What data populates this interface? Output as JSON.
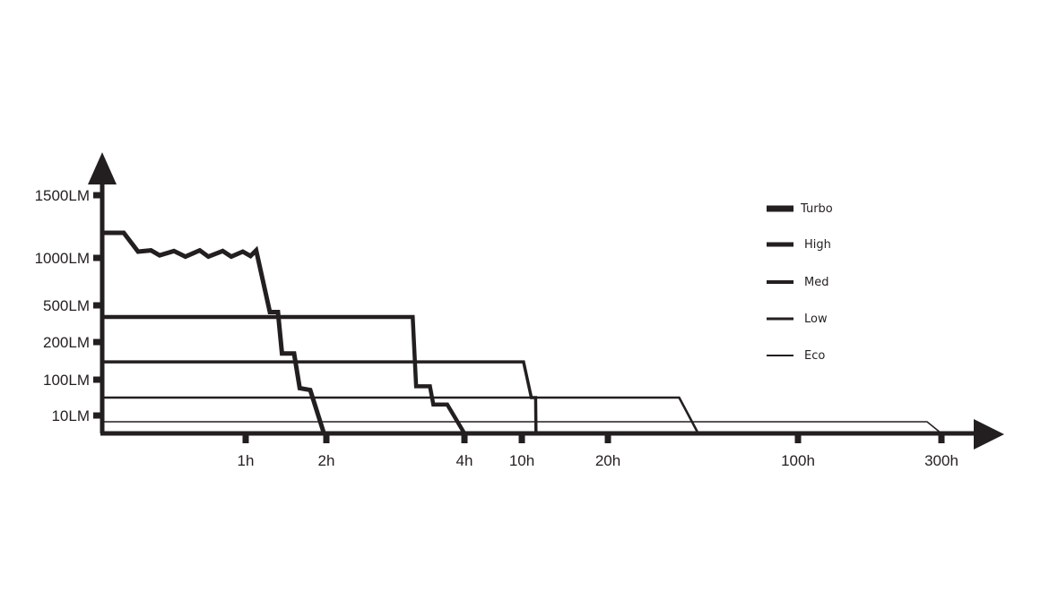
{
  "chart_data": {
    "type": "line",
    "title": "",
    "xlabel": "",
    "ylabel": "",
    "x_scale": "piecewise",
    "y_scale": "piecewise",
    "grid": false,
    "legend_position": "right",
    "color": "#231f20",
    "y_ticks": [
      "1500LM",
      "1000LM",
      "500LM",
      "200LM",
      "100LM",
      "10LM"
    ],
    "x_ticks": [
      "1h",
      "2h",
      "4h",
      "10h",
      "20h",
      "100h",
      "300h"
    ],
    "series": [
      {
        "name": "Turbo",
        "points": [
          {
            "x": 0,
            "y": 1200
          },
          {
            "x": 0.15,
            "y": 1200
          },
          {
            "x": 0.25,
            "y": 1050
          },
          {
            "x": 0.34,
            "y": 1060
          },
          {
            "x": 0.4,
            "y": 1020
          },
          {
            "x": 0.5,
            "y": 1055
          },
          {
            "x": 0.58,
            "y": 1010
          },
          {
            "x": 0.68,
            "y": 1060
          },
          {
            "x": 0.74,
            "y": 1010
          },
          {
            "x": 0.84,
            "y": 1055
          },
          {
            "x": 0.9,
            "y": 1010
          },
          {
            "x": 0.98,
            "y": 1050
          },
          {
            "x": 1.06,
            "y": 1015
          },
          {
            "x": 1.13,
            "y": 1060
          },
          {
            "x": 1.3,
            "y": 450
          },
          {
            "x": 1.4,
            "y": 450
          },
          {
            "x": 1.45,
            "y": 230
          },
          {
            "x": 1.6,
            "y": 230
          },
          {
            "x": 1.67,
            "y": 125
          },
          {
            "x": 1.8,
            "y": 120
          },
          {
            "x": 1.97,
            "y": 0
          },
          {
            "x": 2,
            "y": 0
          }
        ]
      },
      {
        "name": "High",
        "points": [
          {
            "x": 0,
            "y": 400
          },
          {
            "x": 3.25,
            "y": 400
          },
          {
            "x": 3.3,
            "y": 130
          },
          {
            "x": 3.5,
            "y": 130
          },
          {
            "x": 3.55,
            "y": 80
          },
          {
            "x": 3.75,
            "y": 80
          },
          {
            "x": 4,
            "y": 0
          }
        ]
      },
      {
        "name": "Med",
        "points": [
          {
            "x": 0,
            "y": 195
          },
          {
            "x": 10.2,
            "y": 195
          },
          {
            "x": 11.1,
            "y": 100
          },
          {
            "x": 11.6,
            "y": 100
          },
          {
            "x": 11.65,
            "y": 0
          }
        ]
      },
      {
        "name": "Low",
        "points": [
          {
            "x": 0,
            "y": 100
          },
          {
            "x": 50,
            "y": 100
          },
          {
            "x": 58,
            "y": 0
          }
        ]
      },
      {
        "name": "Eco",
        "points": [
          {
            "x": 0,
            "y": 30
          },
          {
            "x": 280,
            "y": 30
          },
          {
            "x": 300,
            "y": 0
          }
        ]
      }
    ],
    "legend": [
      "Turbo",
      "High",
      "Med",
      "Low",
      "Eco"
    ]
  }
}
